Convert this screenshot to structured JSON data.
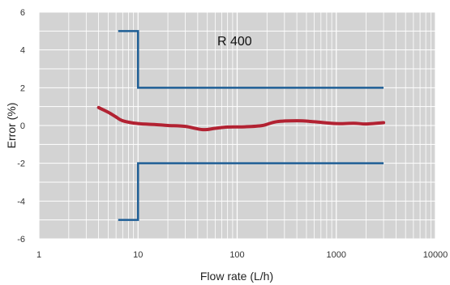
{
  "chart_data": {
    "type": "line",
    "xlabel": "Flow rate (L/h)",
    "ylabel": "Error (%)",
    "xscale": "log",
    "xlim": [
      1,
      10000
    ],
    "ylim": [
      -6,
      6
    ],
    "x_ticks": [
      1,
      10,
      100,
      1000,
      10000
    ],
    "x_tick_labels": [
      "1",
      "10",
      "100",
      "1000",
      "10000"
    ],
    "y_ticks": [
      6,
      4,
      2,
      0,
      -2,
      -4,
      -6
    ],
    "y_tick_labels": [
      "6",
      "4",
      "2",
      "0",
      "-2",
      "-4",
      "-6"
    ],
    "grid": true,
    "annotation": "R 400",
    "colors": {
      "plot_bg": "#d3d3d3",
      "grid": "#ffffff",
      "limit_line": "#1f5f96",
      "error_curve": "#b22232"
    },
    "series": [
      {
        "role": "upper-limit",
        "points": [
          [
            6.3,
            5
          ],
          [
            10,
            5
          ],
          [
            10,
            2
          ],
          [
            3000,
            2
          ]
        ]
      },
      {
        "role": "lower-limit",
        "points": [
          [
            6.3,
            -5
          ],
          [
            10,
            -5
          ],
          [
            10,
            -2
          ],
          [
            3000,
            -2
          ]
        ]
      },
      {
        "role": "error-curve",
        "points": [
          [
            4,
            0.95
          ],
          [
            5,
            0.7
          ],
          [
            6,
            0.45
          ],
          [
            7,
            0.25
          ],
          [
            10,
            0.1
          ],
          [
            15,
            0.05
          ],
          [
            20,
            0.0
          ],
          [
            30,
            -0.05
          ],
          [
            45,
            -0.22
          ],
          [
            60,
            -0.15
          ],
          [
            80,
            -0.08
          ],
          [
            120,
            -0.07
          ],
          [
            180,
            0.0
          ],
          [
            250,
            0.2
          ],
          [
            400,
            0.25
          ],
          [
            600,
            0.2
          ],
          [
            1000,
            0.1
          ],
          [
            1500,
            0.12
          ],
          [
            2000,
            0.08
          ],
          [
            3000,
            0.15
          ]
        ]
      }
    ]
  }
}
